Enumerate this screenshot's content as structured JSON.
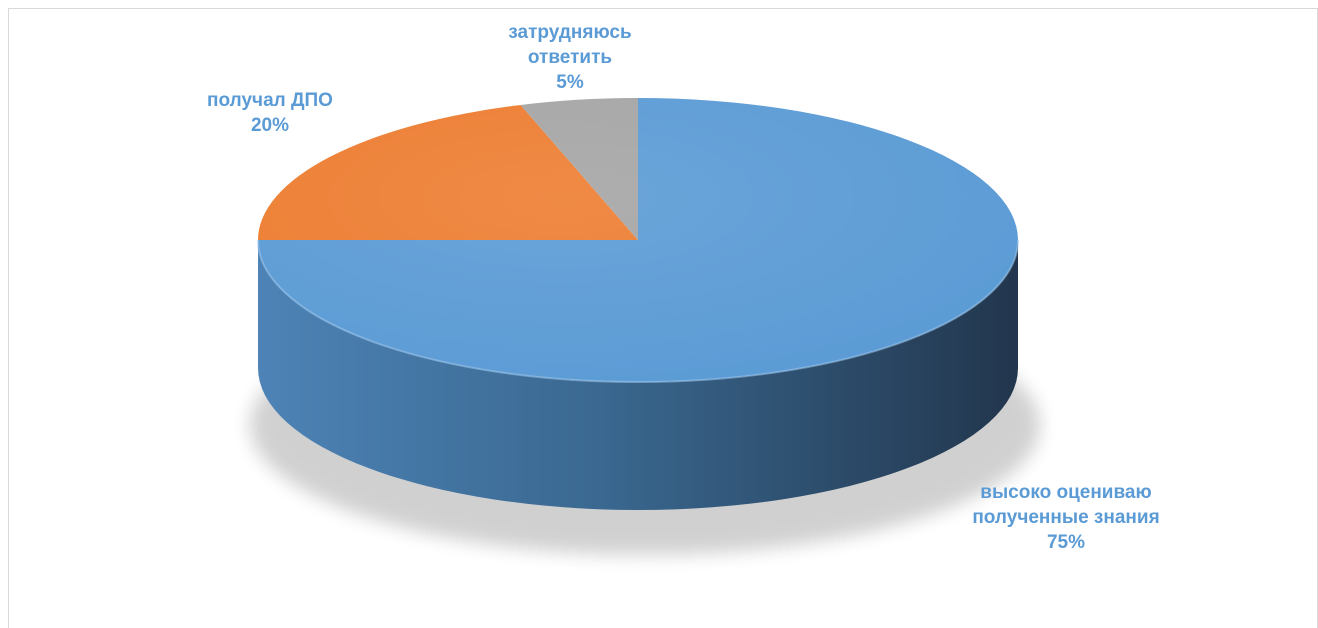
{
  "chart_data": {
    "type": "pie",
    "style": "3d",
    "title": "",
    "slices": [
      {
        "label_lines": [
          "высоко оцениваю",
          "полученные знания"
        ],
        "value": 75,
        "value_label": "75%",
        "color": "#5b9bd5"
      },
      {
        "label_lines": [
          "получал ДПО"
        ],
        "value": 20,
        "value_label": "20%",
        "color": "#ed7d31"
      },
      {
        "label_lines": [
          "затрудняюсь",
          "ответить"
        ],
        "value": 5,
        "value_label": "5%",
        "color": "#a5a5a5"
      }
    ],
    "start_angle": "12 o'clock",
    "direction": "clockwise",
    "label_color": "#5b9bd5",
    "legend": "none"
  }
}
